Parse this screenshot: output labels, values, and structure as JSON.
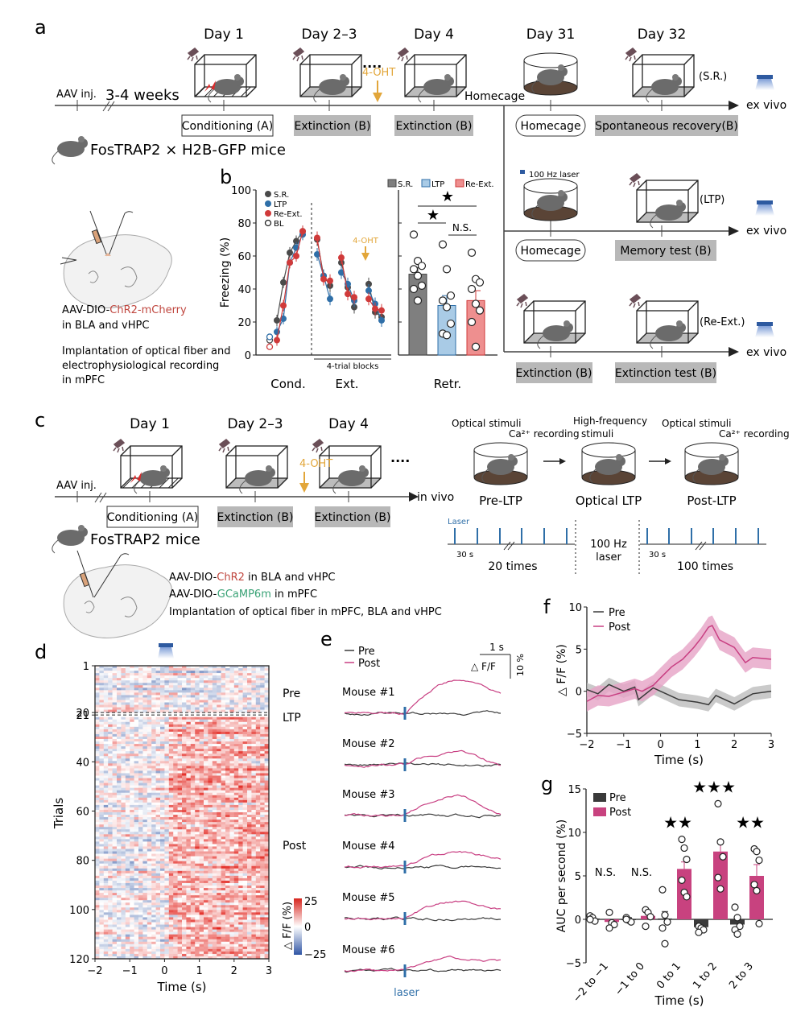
{
  "panel_labels": {
    "a": "a",
    "b": "b",
    "c": "c",
    "d": "d",
    "e": "e",
    "f": "f",
    "g": "g"
  },
  "panel_a": {
    "aav_inj": "AAV inj.",
    "weeks": "3-4 weeks",
    "mouse_line": "FosTRAP2 × H2B-GFP mice",
    "days": [
      "Day 1",
      "Day 2–3",
      "Day 4",
      "Day 31",
      "Day 32"
    ],
    "drug": "4-OHT",
    "ellipsis": "····",
    "homecage_branch": "Homecage",
    "main_boxes": [
      "Conditioning (A)",
      "Extinction (B)",
      "Extinction (B)",
      "Homecage",
      "Spontaneous recovery(B)"
    ],
    "group_sr": "(S.R.)",
    "group_ltp": "(LTP)",
    "group_reext": "(Re-Ext.)",
    "ex_vivo": "ex vivo",
    "laser_label": "100 Hz laser",
    "ltp_boxes": [
      "Homecage",
      "Memory test (B)"
    ],
    "reext_boxes": [
      "Extinction (B)",
      "Extinction test (B)"
    ],
    "virus_prefix": "AAV-DIO-",
    "virus_name": "ChR2-mCherry",
    "virus_region": "in BLA and vHPC",
    "implant_lines": [
      "Implantation of optical fiber and",
      "electrophysiological recording",
      "in mPFC"
    ]
  },
  "panel_c": {
    "aav_inj": "AAV inj.",
    "days": [
      "Day 1",
      "Day 2–3",
      "Day 4"
    ],
    "drug": "4-OHT",
    "ellipsis": "····",
    "in_vivo": "in vivo",
    "boxes": [
      "Conditioning (A)",
      "Extinction (B)",
      "Extinction (B)"
    ],
    "mouse_line": "FosTRAP2 mice",
    "virus1_prefix": "AAV-DIO-",
    "virus1_name": "ChR2",
    "virus1_region": "in BLA and vHPC",
    "virus2_prefix": "AAV-DIO-",
    "virus2_name": "GCaMP6m",
    "virus2_region": "in mPFC",
    "implant": "Implantation of optical fiber in mPFC, BLA and vHPC",
    "stages": [
      "Pre-LTP",
      "Optical LTP",
      "Post-LTP"
    ],
    "optical_stimuli": "Optical stimuli",
    "ca_recording": "Ca²⁺ recording",
    "hf_stimuli_1": "High-frequency",
    "hf_stimuli_2": "stimuli",
    "laser": "Laser",
    "interval": "30 s",
    "pre_count": "20 times",
    "post_count": "100 times",
    "hz_1": "100 Hz",
    "hz_2": "laser"
  },
  "colors": {
    "sr": "#4a4a4a",
    "ltp": "#2f6fa8",
    "reext": "#d03a3a",
    "sr_bar": "#7f7f7f",
    "ltp_bar": "#a9cbe6",
    "reext_bar": "#ee8f8f",
    "pre": "#3a3a3a",
    "post": "#c83f82",
    "post_bar": "#c8427f",
    "drug": "#e2a63a",
    "laser": "#2f6fa8",
    "grey_box": "#b8b8b8",
    "chr2": "#c0473f",
    "gcamp": "#3aa276"
  },
  "chart_data": [
    {
      "id": "b-line",
      "type": "line",
      "title": "",
      "ylabel": "Freezing (%)",
      "ylim": [
        0,
        100
      ],
      "yticks": [
        0,
        20,
        40,
        60,
        80,
        100
      ],
      "xgroups": [
        "Cond.",
        "Ext."
      ],
      "xnote": "4-trial blocks",
      "annotation": "4-OHT",
      "legend": [
        "S.R.",
        "LTP",
        "Re-Ext.",
        "BL"
      ],
      "bl": {
        "S.R.": 9,
        "LTP": 11,
        "Re-Ext.": 5
      },
      "series": [
        {
          "name": "S.R.",
          "cond": [
            21,
            44,
            62,
            69,
            75
          ],
          "ext": [
            [
              70,
              48,
              42
            ],
            [
              56,
              41,
              29
            ],
            [
              43,
              26,
              23
            ]
          ]
        },
        {
          "name": "LTP",
          "cond": [
            14,
            22,
            56,
            65,
            73
          ],
          "ext": [
            [
              61,
              48,
              34
            ],
            [
              50,
              43,
              33
            ],
            [
              39,
              31,
              21
            ]
          ]
        },
        {
          "name": "Re-Ext.",
          "cond": [
            9,
            30,
            56,
            60,
            75
          ],
          "ext": [
            [
              71,
              46,
              45
            ],
            [
              59,
              37,
              35
            ],
            [
              34,
              28,
              27
            ]
          ]
        }
      ]
    },
    {
      "id": "b-bar",
      "type": "bar",
      "xlabel": "Retr.",
      "categories": [
        "S.R.",
        "LTP",
        "Re-Ext."
      ],
      "values": [
        49,
        30,
        33
      ],
      "sem": [
        4,
        6,
        6
      ],
      "points": [
        [
          73,
          57,
          54,
          52,
          48,
          42,
          40,
          33
        ],
        [
          67,
          52,
          36,
          33,
          29,
          19,
          13,
          12
        ],
        [
          62,
          46,
          44,
          40,
          31,
          27,
          20,
          5
        ]
      ],
      "ylim": [
        0,
        100
      ],
      "significance": [
        {
          "pair": "S.R.-LTP",
          "label": "★"
        },
        {
          "pair": "S.R.-Re-Ext.",
          "label": "★"
        },
        {
          "pair": "LTP-Re-Ext.",
          "label": "N.S."
        }
      ]
    },
    {
      "id": "d-heatmap",
      "type": "heatmap",
      "xlabel": "Time (s)",
      "ylabel": "Trials",
      "xlim": [
        -2,
        3
      ],
      "xticks": [
        -2,
        -1,
        0,
        1,
        2,
        3
      ],
      "yticks": [
        1,
        20,
        21,
        40,
        60,
        80,
        100,
        120
      ],
      "rows": 120,
      "ltp_gap": [
        20,
        21
      ],
      "section_labels": [
        "Pre",
        "LTP",
        "Post"
      ],
      "colorbar_label": "△ F/F (%)",
      "colorbar_ticks": [
        25,
        0,
        -25
      ]
    },
    {
      "id": "e-traces",
      "type": "line",
      "mice": [
        "Mouse #1",
        "Mouse #2",
        "Mouse #3",
        "Mouse #4",
        "Mouse #5",
        "Mouse #6"
      ],
      "legend": [
        "Pre",
        "Post"
      ],
      "scale_time": "1 s",
      "scale_amp": "10 %",
      "scale_label": "△ F/F",
      "marker": "laser",
      "post_peak": [
        16,
        6,
        10,
        7,
        8,
        6
      ],
      "post_late": [
        9,
        0,
        1,
        4,
        5,
        5
      ]
    },
    {
      "id": "f-mean",
      "type": "line",
      "xlabel": "Time (s)",
      "ylabel": "△ F/F (%)",
      "xlim": [
        -2,
        3
      ],
      "ylim": [
        -5,
        10
      ],
      "xticks": [
        -2,
        -1,
        0,
        1,
        2,
        3
      ],
      "yticks": [
        -5,
        0,
        5,
        10
      ],
      "legend": [
        "Pre",
        "Post"
      ],
      "series": [
        {
          "name": "Pre",
          "x": [
            -2,
            -1.7,
            -1.4,
            -1,
            -0.7,
            -0.6,
            -0.2,
            0,
            0.5,
            1,
            1.3,
            1.5,
            2,
            2.5,
            3
          ],
          "y": [
            0.2,
            -0.3,
            0.8,
            0,
            0.5,
            -1.0,
            0.4,
            0,
            -1.0,
            -1.3,
            -1.6,
            -0.5,
            -1.5,
            -0.3,
            0
          ],
          "sem": 0.8
        },
        {
          "name": "Post",
          "x": [
            -2,
            -1.7,
            -1.4,
            -1,
            -0.7,
            -0.5,
            -0.2,
            0,
            0.3,
            0.6,
            0.9,
            1.1,
            1.3,
            1.4,
            1.6,
            2,
            2.3,
            2.5,
            3
          ],
          "y": [
            -1.2,
            -0.5,
            -0.6,
            -0.1,
            0.3,
            0,
            0.7,
            1.6,
            2.9,
            3.8,
            5.2,
            6.3,
            7.6,
            7.8,
            6.1,
            5.2,
            3.4,
            4.0,
            3.8
          ],
          "sem": 1.2
        }
      ]
    },
    {
      "id": "g-bar",
      "type": "bar",
      "xlabel": "Time (s)",
      "ylabel": "AUC per second (%)",
      "ylim": [
        -5,
        15
      ],
      "yticks": [
        -5,
        0,
        5,
        10,
        15
      ],
      "categories": [
        "-2 to -1",
        "-1 to 0",
        "0 to 1",
        "1 to 2",
        "2 to 3"
      ],
      "legend": [
        "Pre",
        "Post"
      ],
      "series": [
        {
          "name": "Pre",
          "values": [
            0.1,
            0.0,
            0.1,
            -0.9,
            -0.6
          ],
          "sem": [
            0.2,
            0.2,
            0.8,
            0.3,
            0.4
          ],
          "points": [
            [
              0.4,
              0.2,
              -0.2,
              0
            ],
            [
              0.2,
              -0.1,
              -0.3,
              0
            ],
            [
              3.4,
              0.5,
              -0.3,
              -1.0,
              -2.8
            ],
            [
              -0.8,
              -1.0,
              -1.2,
              -1.5
            ],
            [
              1.4,
              0.2,
              -0.8,
              -1.2,
              -1.7
            ]
          ]
        },
        {
          "name": "Post",
          "values": [
            -0.3,
            0.4,
            5.8,
            7.8,
            5.0
          ],
          "sem": [
            0.3,
            0.3,
            0.8,
            1.1,
            1.3
          ],
          "points": [
            [
              0.8,
              -0.4,
              -0.6,
              -1.0
            ],
            [
              1.1,
              0.8,
              0.3,
              -0.8
            ],
            [
              9.2,
              8.2,
              6.9,
              4.5,
              3.1,
              2.6
            ],
            [
              13.3,
              8.9,
              7.2,
              4.8,
              3.5
            ],
            [
              8.1,
              7.8,
              6.8,
              4.0,
              3.3,
              -0.5
            ]
          ]
        }
      ],
      "significance": [
        "N.S.",
        "N.S.",
        "★★",
        "★★★",
        "★★"
      ]
    }
  ]
}
